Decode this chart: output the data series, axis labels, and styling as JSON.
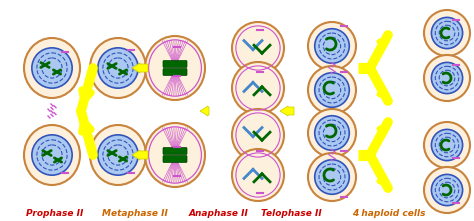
{
  "background_color": "#ffffff",
  "stage_labels": [
    "Prophase II",
    "Metaphase II",
    "Anaphase II",
    "Telophase II",
    "4 haploid cells"
  ],
  "label_colors": [
    "#cc0000",
    "#cc6600",
    "#cc0000",
    "#cc0000",
    "#cc6600"
  ],
  "label_fontsize": 6.5,
  "cell_outer_color": "#c8843c",
  "cell_membrane_color": "#cc55cc",
  "nucleus_fill": "#aac8f0",
  "nucleus_ring_color": "#3355bb",
  "chromosome_color": "#006600",
  "arrow_color": "#ffff00",
  "figsize": [
    4.74,
    2.21
  ],
  "dpi": 100
}
